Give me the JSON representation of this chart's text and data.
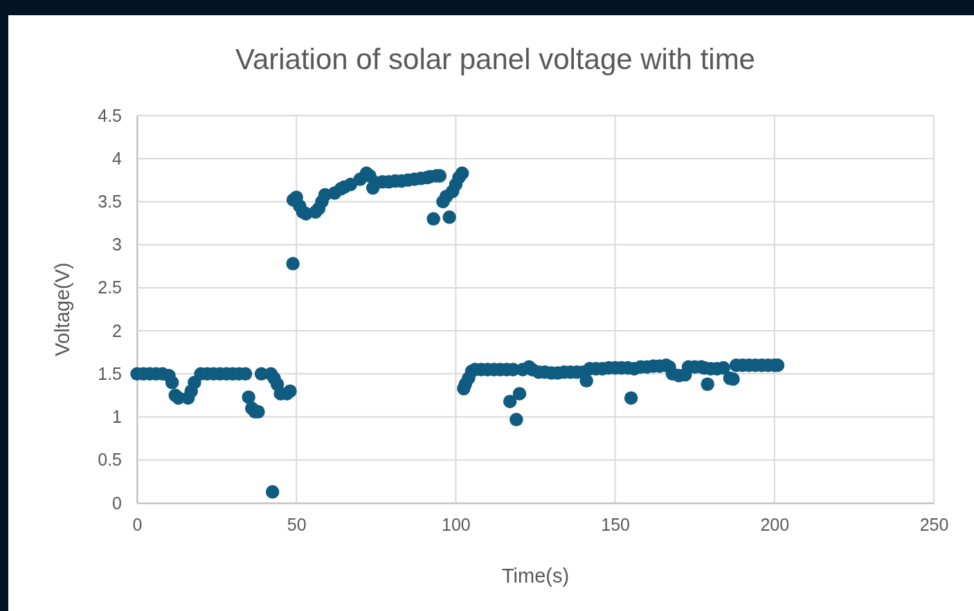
{
  "chart_data": {
    "type": "scatter",
    "title": "Variation of solar panel voltage with time",
    "xlabel": "Time(s)",
    "ylabel": "Voltage(V)",
    "xlim": [
      0,
      250
    ],
    "xticks": [
      0,
      50,
      100,
      150,
      200,
      250
    ],
    "ylim": [
      0,
      4.5
    ],
    "yticks": [
      0,
      0.5,
      1,
      1.5,
      2,
      2.5,
      3,
      3.5,
      4,
      4.5
    ],
    "grid": true,
    "marker": "circle",
    "series": [
      {
        "color": "#0f5c80",
        "x": [
          0,
          2,
          4,
          6,
          8,
          10,
          11,
          12,
          13,
          16,
          17,
          18,
          20,
          22,
          24,
          26,
          28,
          30,
          32,
          34,
          35,
          36,
          37,
          38,
          39,
          42,
          42.5,
          43,
          44,
          45,
          47,
          48,
          48.9,
          49,
          50,
          51,
          52,
          53,
          56,
          57,
          58,
          59,
          62,
          64,
          65,
          67,
          70,
          72,
          73,
          74,
          75,
          77,
          79,
          81,
          83,
          85,
          87,
          89,
          91,
          92,
          93,
          94,
          95,
          96,
          97,
          98,
          99,
          100,
          101,
          102,
          102.5,
          103,
          104,
          105,
          106,
          108,
          110,
          112,
          114,
          116,
          117,
          118,
          119,
          120,
          121,
          123,
          124,
          126,
          128,
          130,
          132,
          134,
          136,
          138,
          140,
          141,
          142,
          144,
          146,
          148,
          150,
          152,
          154,
          155,
          156,
          158,
          160,
          162,
          164,
          166,
          167,
          168,
          170,
          172,
          173,
          175,
          177,
          178,
          179,
          180,
          182,
          184,
          186,
          187,
          188,
          190,
          192,
          194,
          196,
          198,
          200,
          201
        ],
        "values": [
          1.5,
          1.5,
          1.5,
          1.5,
          1.5,
          1.48,
          1.4,
          1.25,
          1.22,
          1.22,
          1.3,
          1.4,
          1.5,
          1.5,
          1.5,
          1.5,
          1.5,
          1.5,
          1.5,
          1.5,
          1.23,
          1.1,
          1.06,
          1.06,
          1.5,
          1.5,
          0.13,
          1.45,
          1.38,
          1.27,
          1.27,
          1.3,
          2.78,
          3.52,
          3.55,
          3.45,
          3.38,
          3.36,
          3.38,
          3.42,
          3.5,
          3.58,
          3.6,
          3.65,
          3.67,
          3.7,
          3.76,
          3.83,
          3.8,
          3.66,
          3.72,
          3.73,
          3.73,
          3.74,
          3.74,
          3.75,
          3.76,
          3.77,
          3.78,
          3.79,
          3.3,
          3.8,
          3.8,
          3.5,
          3.56,
          3.32,
          3.62,
          3.7,
          3.78,
          3.83,
          1.33,
          1.38,
          1.45,
          1.53,
          1.55,
          1.55,
          1.55,
          1.55,
          1.55,
          1.55,
          1.18,
          1.55,
          0.97,
          1.27,
          1.55,
          1.58,
          1.55,
          1.52,
          1.52,
          1.51,
          1.51,
          1.52,
          1.52,
          1.52,
          1.52,
          1.42,
          1.56,
          1.56,
          1.56,
          1.57,
          1.57,
          1.57,
          1.57,
          1.22,
          1.56,
          1.58,
          1.58,
          1.59,
          1.59,
          1.6,
          1.58,
          1.5,
          1.48,
          1.49,
          1.58,
          1.58,
          1.58,
          1.57,
          1.38,
          1.56,
          1.56,
          1.57,
          1.45,
          1.44,
          1.6,
          1.6,
          1.6,
          1.6,
          1.6,
          1.6,
          1.6,
          1.6
        ]
      }
    ]
  }
}
